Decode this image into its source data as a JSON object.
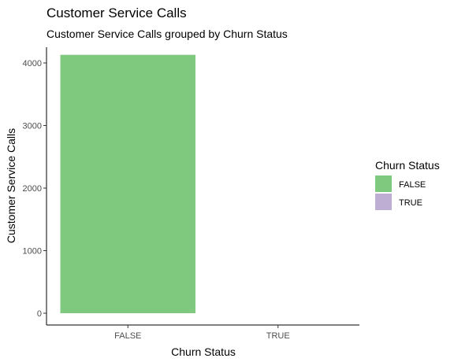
{
  "chart_data": {
    "type": "bar",
    "title": "Customer Service Calls",
    "subtitle": "Customer Service Calls grouped by Churn Status",
    "xlabel": "Churn Status",
    "ylabel": "Customer Service Calls",
    "categories": [
      "FALSE",
      "TRUE"
    ],
    "values": [
      4130,
      0
    ],
    "ylim": [
      0,
      4200
    ],
    "yticks": [
      0,
      1000,
      2000,
      3000,
      4000
    ],
    "grid": false,
    "legend": {
      "title": "Churn Status",
      "placement": "right",
      "entries": [
        {
          "label": "FALSE",
          "color": "#7fc97f"
        },
        {
          "label": "TRUE",
          "color": "#beaed4"
        }
      ]
    },
    "colors": [
      "#7fc97f",
      "#beaed4"
    ]
  }
}
